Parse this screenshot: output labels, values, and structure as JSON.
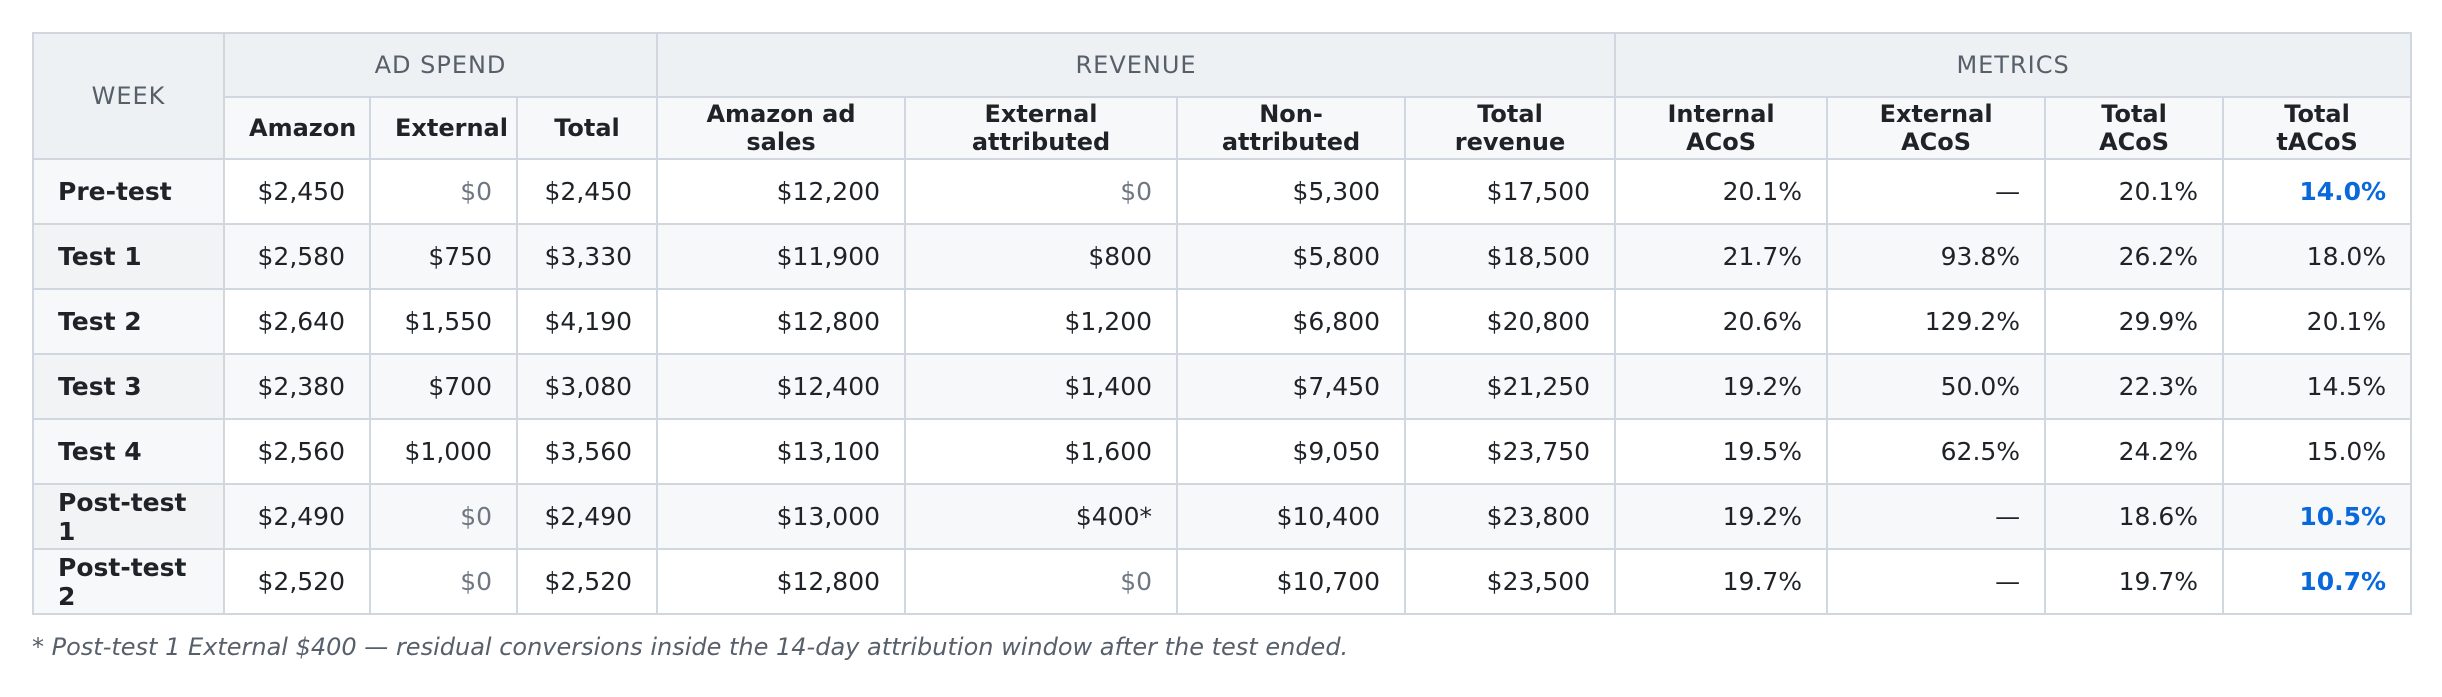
{
  "headers": {
    "week": "WEEK",
    "groups": [
      "AD SPEND",
      "REVENUE",
      "METRICS"
    ],
    "columns": [
      "Amazon",
      "External",
      "Total",
      "Amazon ad sales",
      "External attributed",
      "Non-attributed",
      "Total revenue",
      "Internal ACoS",
      "External ACoS",
      "Total ACoS",
      "Total tACoS"
    ]
  },
  "rows": [
    {
      "week": "Pre-test",
      "cells": [
        "$2,450",
        "$0",
        "$2,450",
        "$12,200",
        "$0",
        "$5,300",
        "$17,500",
        "20.1%",
        "—",
        "20.1%",
        "14.0%"
      ]
    },
    {
      "week": "Test 1",
      "cells": [
        "$2,580",
        "$750",
        "$3,330",
        "$11,900",
        "$800",
        "$5,800",
        "$18,500",
        "21.7%",
        "93.8%",
        "26.2%",
        "18.0%"
      ]
    },
    {
      "week": "Test 2",
      "cells": [
        "$2,640",
        "$1,550",
        "$4,190",
        "$12,800",
        "$1,200",
        "$6,800",
        "$20,800",
        "20.6%",
        "129.2%",
        "29.9%",
        "20.1%"
      ]
    },
    {
      "week": "Test 3",
      "cells": [
        "$2,380",
        "$700",
        "$3,080",
        "$12,400",
        "$1,400",
        "$7,450",
        "$21,250",
        "19.2%",
        "50.0%",
        "22.3%",
        "14.5%"
      ]
    },
    {
      "week": "Test 4",
      "cells": [
        "$2,560",
        "$1,000",
        "$3,560",
        "$13,100",
        "$1,600",
        "$9,050",
        "$23,750",
        "19.5%",
        "62.5%",
        "24.2%",
        "15.0%"
      ]
    },
    {
      "week": "Post-test 1",
      "cells": [
        "$2,490",
        "$0",
        "$2,490",
        "$13,000",
        "$400*",
        "$10,400",
        "$23,800",
        "19.2%",
        "—",
        "18.6%",
        "10.5%"
      ]
    },
    {
      "week": "Post-test 2",
      "cells": [
        "$2,520",
        "$0",
        "$2,520",
        "$12,800",
        "$0",
        "$10,700",
        "$23,500",
        "19.7%",
        "—",
        "19.7%",
        "10.7%"
      ]
    }
  ],
  "footnote": "* Post-test 1 External $400 — residual conversions inside the 14-day attribution window after the test ended.",
  "colors": {
    "highlight": "#0969da",
    "muted": "#6e7781"
  }
}
